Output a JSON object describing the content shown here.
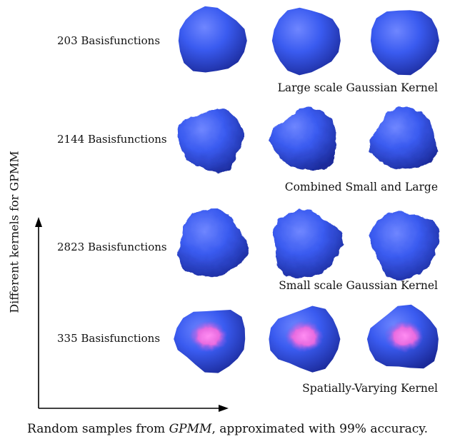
{
  "rows": [
    {
      "count_label": "203 Basisfunctions",
      "kernel_label": "Large scale Gaussian Kernel",
      "style": "smooth"
    },
    {
      "count_label": "2144 Basisfunctions",
      "kernel_label": "Combined Small and Large",
      "style": "bumpy"
    },
    {
      "count_label": "2823 Basisfunctions",
      "kernel_label": "Small scale Gaussian Kernel",
      "style": "bumpy"
    },
    {
      "count_label": "335 Basisfunctions",
      "kernel_label": "Spatially-Varying Kernel",
      "style": "highlight"
    }
  ],
  "y_axis_label": "Different kernels for GPMM",
  "caption": {
    "prefix": "Random samples from ",
    "model": "GPMM",
    "suffix": ", approximated with 99% accuracy."
  },
  "colors": {
    "shape_blue": "#3a5bf0",
    "shape_dark": "#1b2a9a",
    "highlight_pink": "#e86be0"
  }
}
